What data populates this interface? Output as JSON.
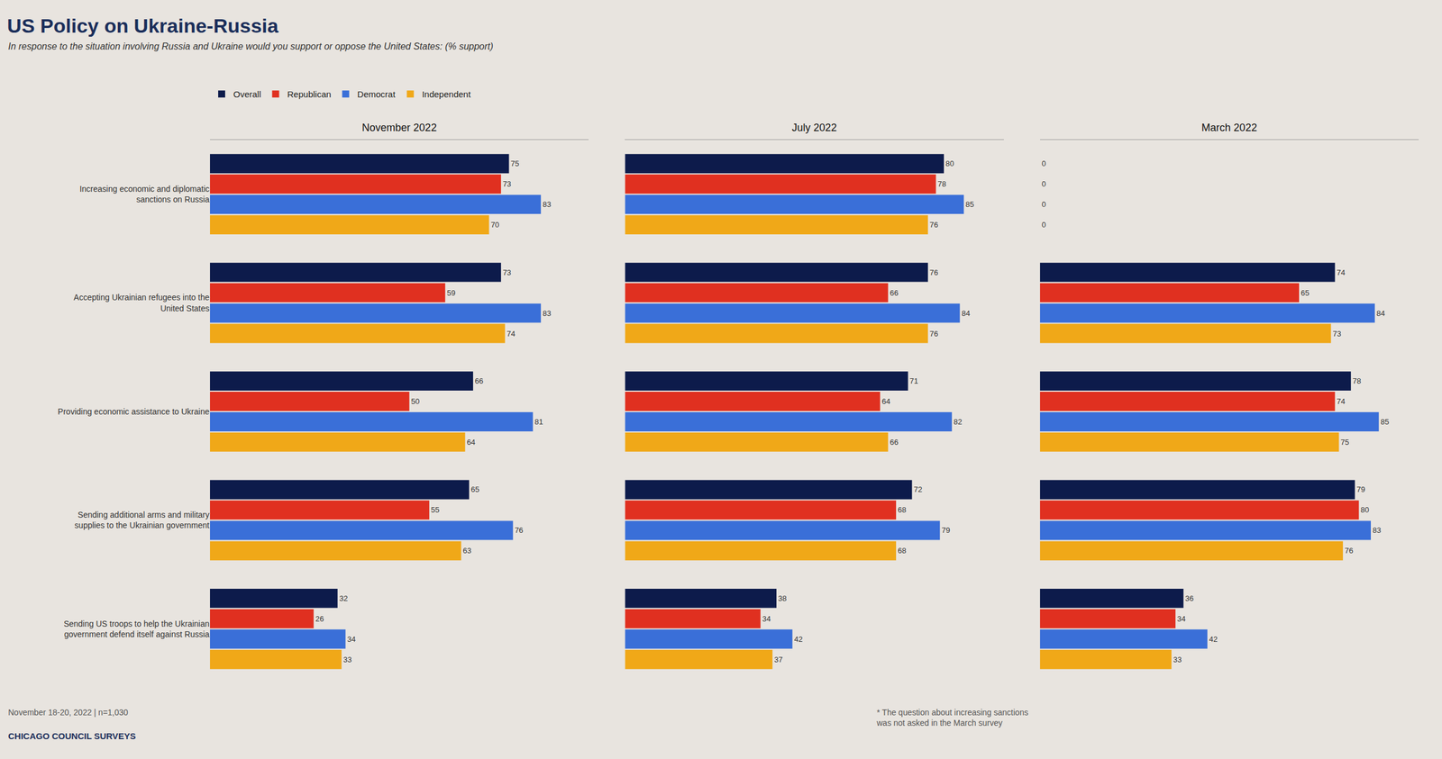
{
  "title": "US Policy on Ukraine-Russia",
  "subtitle": "In response to the situation involving Russia and Ukraine would you support or oppose the United States: (% support)",
  "annotations": [
    "November 18-20, 2022 | n=1,030",
    "CHICAGO COUNCIL SURVEYS",
    "* The question about increasing sanctions\nwas not asked in the March survey"
  ],
  "chart_data": [
    {
      "type": "bar",
      "orientation": "horizontal",
      "title": "November 2022",
      "categories": [
        "Increasing economic and diplomatic\nsanctions on Russia",
        "Accepting Ukrainian refugees into the\nUnited States",
        "Providing economic assistance to Ukraine",
        "Sending additional arms and military\nsupplies to the Ukrainian government",
        "Sending US troops to help the Ukrainian\ngovernment defend itself against Russia"
      ],
      "series": [
        {
          "name": "Overall",
          "color": "#0d1b4b",
          "values": [
            75,
            73,
            66,
            65,
            32
          ]
        },
        {
          "name": "Republican",
          "color": "#e03020",
          "values": [
            73,
            59,
            50,
            55,
            26
          ]
        },
        {
          "name": "Democrat",
          "color": "#3a6fd8",
          "values": [
            83,
            83,
            81,
            76,
            34
          ]
        },
        {
          "name": "Independent",
          "color": "#f0a818",
          "values": [
            70,
            74,
            64,
            63,
            33
          ]
        }
      ],
      "xlim": [
        0,
        95
      ],
      "data_labels": true,
      "tick_labels": "y",
      "grid": false,
      "legend": "top"
    },
    {
      "type": "bar",
      "orientation": "horizontal",
      "title": "July 2022",
      "categories": [
        "Increasing economic and diplomatic\nsanctions on Russia",
        "Accepting Ukrainian refugees into the\nUnited States",
        "Providing economic assistance to Ukraine",
        "Sending additional arms and military\nsupplies to the Ukrainian government",
        "Sending US troops to help the Ukrainian\ngovernment defend itself against Russia"
      ],
      "series": [
        {
          "name": "Overall",
          "color": "#0d1b4b",
          "values": [
            80,
            76,
            71,
            72,
            38
          ]
        },
        {
          "name": "Republican",
          "color": "#e03020",
          "values": [
            78,
            66,
            64,
            68,
            34
          ]
        },
        {
          "name": "Democrat",
          "color": "#3a6fd8",
          "values": [
            85,
            84,
            82,
            79,
            42
          ]
        },
        {
          "name": "Independent",
          "color": "#f0a818",
          "values": [
            76,
            76,
            66,
            68,
            37
          ]
        }
      ],
      "xlim": [
        0,
        95
      ],
      "data_labels": true,
      "tick_labels": false,
      "grid": false
    },
    {
      "type": "bar",
      "orientation": "horizontal",
      "title": "March 2022",
      "categories": [
        "Increasing economic and diplomatic\nsanctions on Russia",
        "Accepting Ukrainian refugees into the\nUnited States",
        "Providing economic assistance to Ukraine",
        "Sending additional arms and military\nsupplies to the Ukrainian government",
        "Sending US troops to help the Ukrainian\ngovernment defend itself against Russia"
      ],
      "series": [
        {
          "name": "Overall",
          "color": "#0d1b4b",
          "values": [
            0,
            74,
            78,
            79,
            36
          ]
        },
        {
          "name": "Republican",
          "color": "#e03020",
          "values": [
            0,
            65,
            74,
            80,
            34
          ]
        },
        {
          "name": "Democrat",
          "color": "#3a6fd8",
          "values": [
            0,
            84,
            85,
            83,
            42
          ]
        },
        {
          "name": "Independent",
          "color": "#f0a818",
          "values": [
            0,
            73,
            75,
            76,
            33
          ]
        }
      ],
      "xlim": [
        0,
        95
      ],
      "data_labels": true,
      "tick_labels": false,
      "grid": false
    }
  ]
}
